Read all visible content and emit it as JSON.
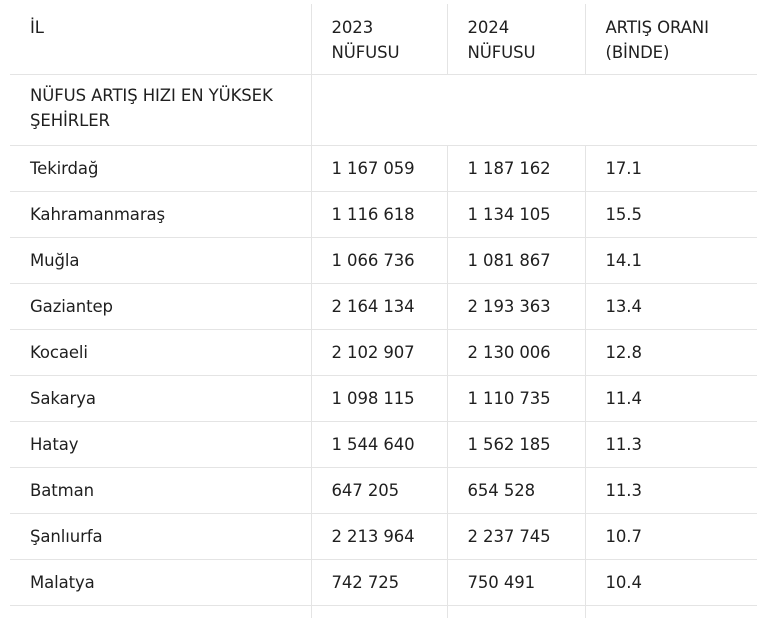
{
  "header": {
    "col_il": "İL",
    "col_2023_line1": "2023",
    "col_2023_line2": "NÜFUSU",
    "col_2024_line1": "2024",
    "col_2024_line2": "NÜFUSU",
    "col_rate_line1": "ARTIŞ ORANI",
    "col_rate_line2": "(BİNDE)"
  },
  "section": {
    "line1": "NÜFUS ARTIŞ HIZI EN YÜKSEK",
    "line2": "ŞEHİRLER"
  },
  "rows": [
    {
      "il": "Tekirdağ",
      "pop2023": "1 167 059",
      "pop2024": "1 187 162",
      "rate": "17.1"
    },
    {
      "il": "Kahramanmaraş",
      "pop2023": "1 116 618",
      "pop2024": "1 134 105",
      "rate": "15.5"
    },
    {
      "il": "Muğla",
      "pop2023": "1 066 736",
      "pop2024": "1 081 867",
      "rate": "14.1"
    },
    {
      "il": "Gaziantep",
      "pop2023": "2 164 134",
      "pop2024": "2 193 363",
      "rate": "13.4"
    },
    {
      "il": "Kocaeli",
      "pop2023": "2 102 907",
      "pop2024": "2 130 006",
      "rate": "12.8"
    },
    {
      "il": "Sakarya",
      "pop2023": "1 098 115",
      "pop2024": "1 110 735",
      "rate": "11.4"
    },
    {
      "il": "Hatay",
      "pop2023": "1 544 640",
      "pop2024": "1 562 185",
      "rate": "11.3"
    },
    {
      "il": "Batman",
      "pop2023": "647 205",
      "pop2024": "654 528",
      "rate": "11.3"
    },
    {
      "il": "Şanlıurfa",
      "pop2023": "2 213 964",
      "pop2024": "2 237 745",
      "rate": "10.7"
    },
    {
      "il": "Malatya",
      "pop2023": "742 725",
      "pop2024": "750 491",
      "rate": "10.4"
    }
  ]
}
